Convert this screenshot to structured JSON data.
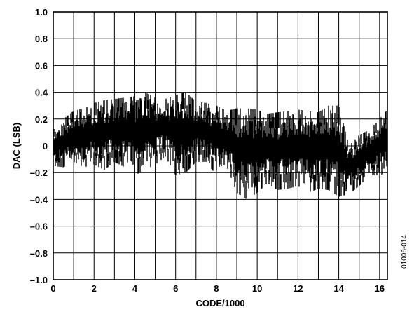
{
  "chart_data": {
    "type": "line",
    "xlabel": "CODE/1000",
    "ylabel": "DAC (LSB)",
    "xlim": [
      0,
      16.384
    ],
    "ylim": [
      -1.0,
      1.0
    ],
    "x_ticks": [
      "0",
      "2",
      "4",
      "6",
      "8",
      "10",
      "12",
      "14",
      "16"
    ],
    "y_ticks": [
      "1.0",
      "0.8",
      "0.6",
      "0.4",
      "0.2",
      "0",
      "–0.2",
      "–0.4",
      "–0.6",
      "–0.8",
      "–1.0"
    ],
    "grid": true,
    "figure_id": "01006-014",
    "series": [
      {
        "x": [
          0,
          0.5,
          1,
          1.5,
          2,
          2.5,
          3,
          3.5,
          4,
          4.5,
          5,
          5.5,
          6,
          6.5,
          7,
          7.5,
          8,
          8.5,
          9,
          9.5,
          10,
          10.5,
          11,
          11.5,
          12,
          12.5,
          13,
          13.5,
          14,
          14.5,
          15,
          15.5,
          16,
          16.38
        ],
        "upper": [
          0.12,
          0.2,
          0.26,
          0.28,
          0.32,
          0.34,
          0.35,
          0.36,
          0.37,
          0.4,
          0.36,
          0.35,
          0.38,
          0.4,
          0.33,
          0.32,
          0.3,
          0.26,
          0.28,
          0.28,
          0.27,
          0.24,
          0.25,
          0.26,
          0.27,
          0.26,
          0.25,
          0.3,
          0.3,
          0.0,
          0.08,
          0.12,
          0.2,
          0.27
        ],
        "lower": [
          -0.15,
          -0.16,
          -0.12,
          -0.16,
          -0.14,
          -0.18,
          -0.12,
          -0.16,
          -0.22,
          -0.18,
          -0.14,
          -0.08,
          -0.22,
          -0.2,
          -0.12,
          -0.12,
          -0.22,
          -0.15,
          -0.35,
          -0.4,
          -0.35,
          -0.28,
          -0.33,
          -0.32,
          -0.3,
          -0.35,
          -0.32,
          -0.33,
          -0.38,
          -0.36,
          -0.3,
          -0.22,
          -0.22,
          -0.2
        ]
      }
    ]
  }
}
